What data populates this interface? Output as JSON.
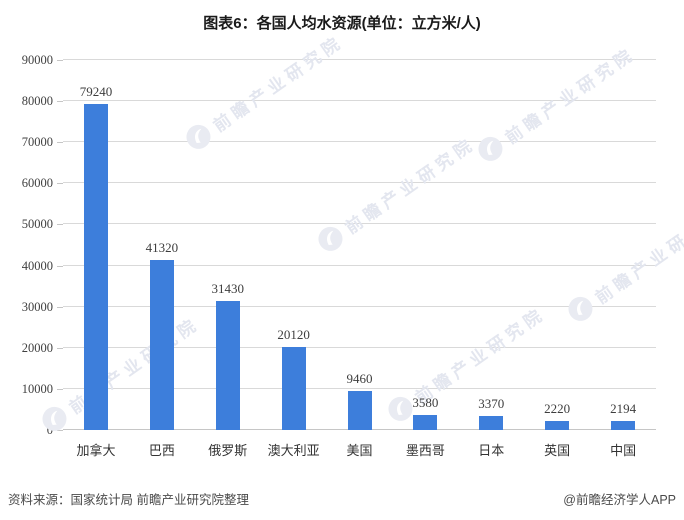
{
  "title": "图表6：各国人均水资源(单位：立方米/人)",
  "watermark": {
    "text": "前瞻产业研究院"
  },
  "footer": {
    "source": "资料来源：国家统计局 前瞻产业研究院整理",
    "credit": "@前瞻经济学人APP"
  },
  "colors": {
    "bar": "#3d7edb",
    "gridline": "#d9d9d9",
    "axis_line": "#c6c6c6",
    "label": "#404040",
    "watermark": "#e3e6ef"
  },
  "chart_data": {
    "type": "bar",
    "title": "图表6：各国人均水资源(单位：立方米/人)",
    "categories": [
      "加拿大",
      "巴西",
      "俄罗斯",
      "澳大利亚",
      "美国",
      "墨西哥",
      "日本",
      "英国",
      "中国"
    ],
    "values": [
      79240,
      41320,
      31430,
      20120,
      9460,
      3580,
      3370,
      2220,
      2194
    ],
    "xlabel": "",
    "ylabel": "",
    "ylim": [
      0,
      90000
    ],
    "ytick_step": 10000,
    "grid": true,
    "legend": false
  }
}
